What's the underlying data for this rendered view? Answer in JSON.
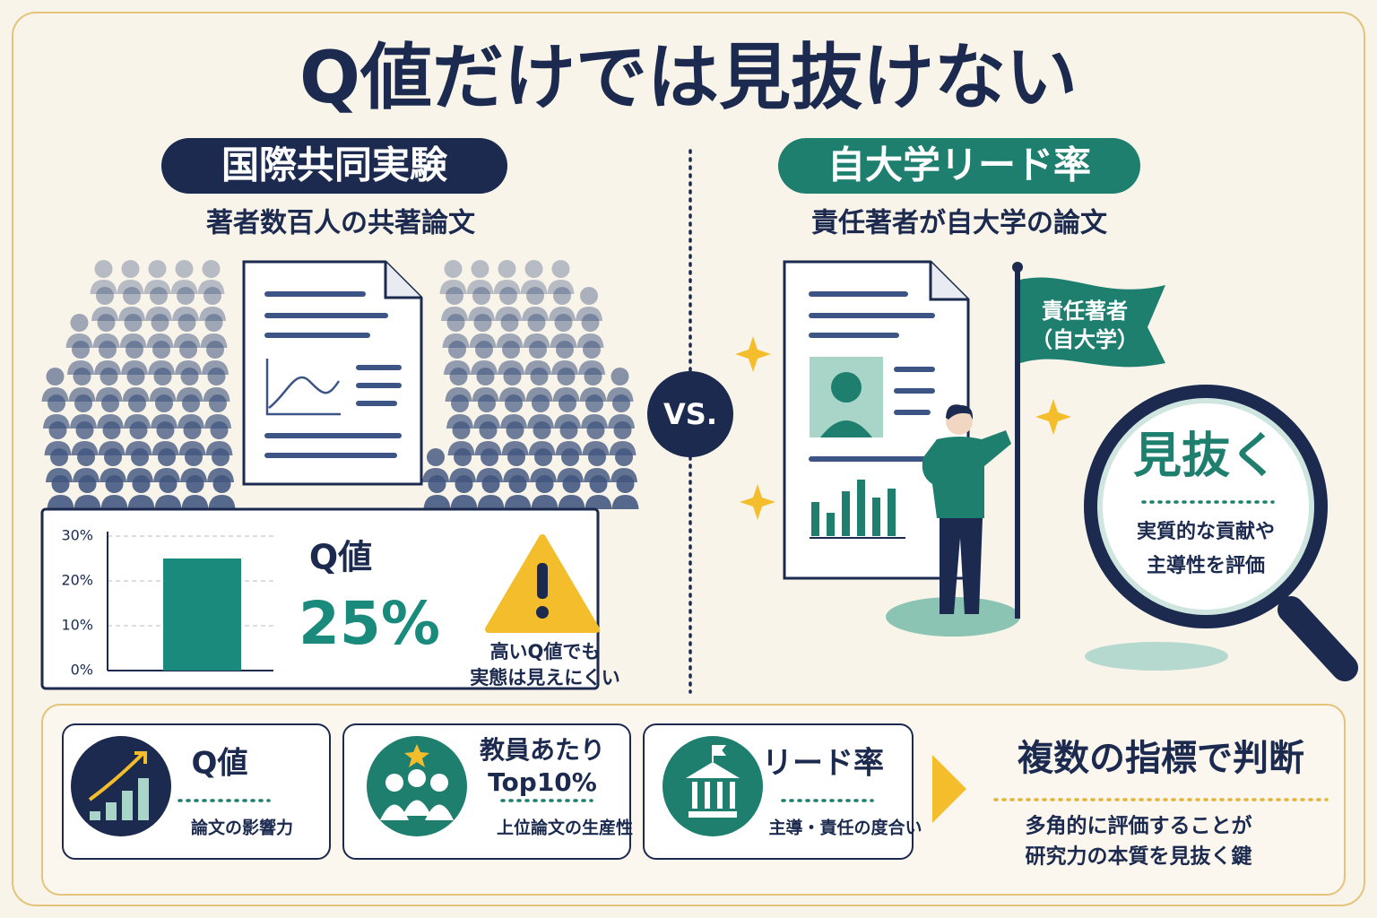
{
  "title": "Q値だけでは見抜けない",
  "left": {
    "heading": "国際共同実験",
    "subtitle": "著者数百人の共著論文",
    "chart": {
      "type": "bar",
      "label": "Q値",
      "values": [
        25
      ],
      "value_labels": [
        "25%"
      ],
      "ylim": [
        0,
        30
      ],
      "yticks": [
        {
          "value": 0,
          "label": "0%"
        },
        {
          "value": 10,
          "label": "10%"
        },
        {
          "value": 20,
          "label": "20%"
        },
        {
          "value": 30,
          "label": "30%"
        }
      ],
      "color": "#1a8a7c",
      "grid": true
    },
    "warning": [
      "高いQ値でも",
      "実態は見えにくい"
    ]
  },
  "vs": "VS.",
  "right": {
    "heading": "自大学リード率",
    "subtitle": "責任著者が自大学の論文",
    "flag": [
      "責任著者",
      "（自大学）"
    ],
    "lens_title": "見抜く",
    "lens_text": [
      "実質的な貢献や",
      "主導性を評価"
    ]
  },
  "metrics": [
    {
      "title": [
        "Q値"
      ],
      "desc": "論文の影響力"
    },
    {
      "title": [
        "教員あたり",
        "Top10%"
      ],
      "desc": "上位論文の生産性"
    },
    {
      "title": [
        "リード率"
      ],
      "desc": "主導・責任の度合い"
    }
  ],
  "conclusion": {
    "title": "複数の指標で判断",
    "text": [
      "多角的に評価することが",
      "研究力の本質を見抜く鍵"
    ]
  }
}
